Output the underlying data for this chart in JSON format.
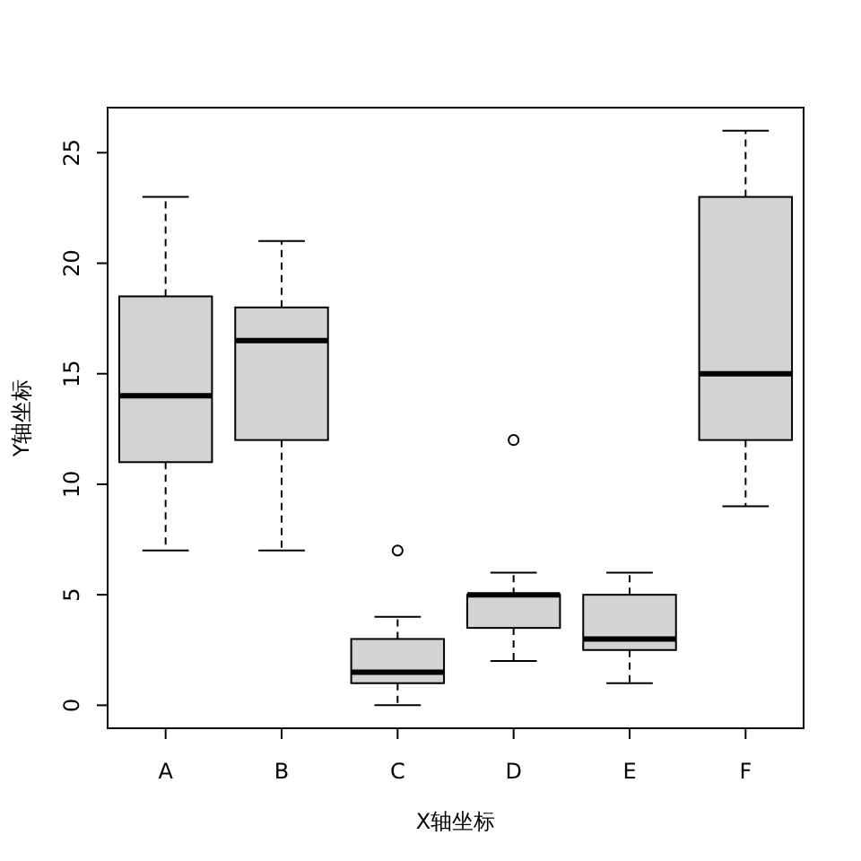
{
  "chart_data": {
    "type": "box",
    "xlabel": "X轴坐标",
    "ylabel": "Y轴坐标",
    "categories": [
      "A",
      "B",
      "C",
      "D",
      "E",
      "F"
    ],
    "boxes": [
      {
        "low": 7,
        "q1": 11,
        "median": 14,
        "q3": 18.5,
        "high": 23
      },
      {
        "low": 7,
        "q1": 12,
        "median": 16.5,
        "q3": 18,
        "high": 21
      },
      {
        "low": 0,
        "q1": 1,
        "median": 1.5,
        "q3": 3,
        "high": 4,
        "outliers": [
          7
        ]
      },
      {
        "low": 2,
        "q1": 3.5,
        "median": 5,
        "q3": 5,
        "high": 6,
        "outliers": [
          12
        ]
      },
      {
        "low": 1,
        "q1": 2.5,
        "median": 3,
        "q3": 5,
        "high": 6
      },
      {
        "low": 9,
        "q1": 12,
        "median": 15,
        "q3": 23,
        "high": 26
      }
    ],
    "ylim": [
      -1.04,
      27.04
    ],
    "yticks": [
      0,
      5,
      10,
      15,
      20,
      25
    ]
  }
}
